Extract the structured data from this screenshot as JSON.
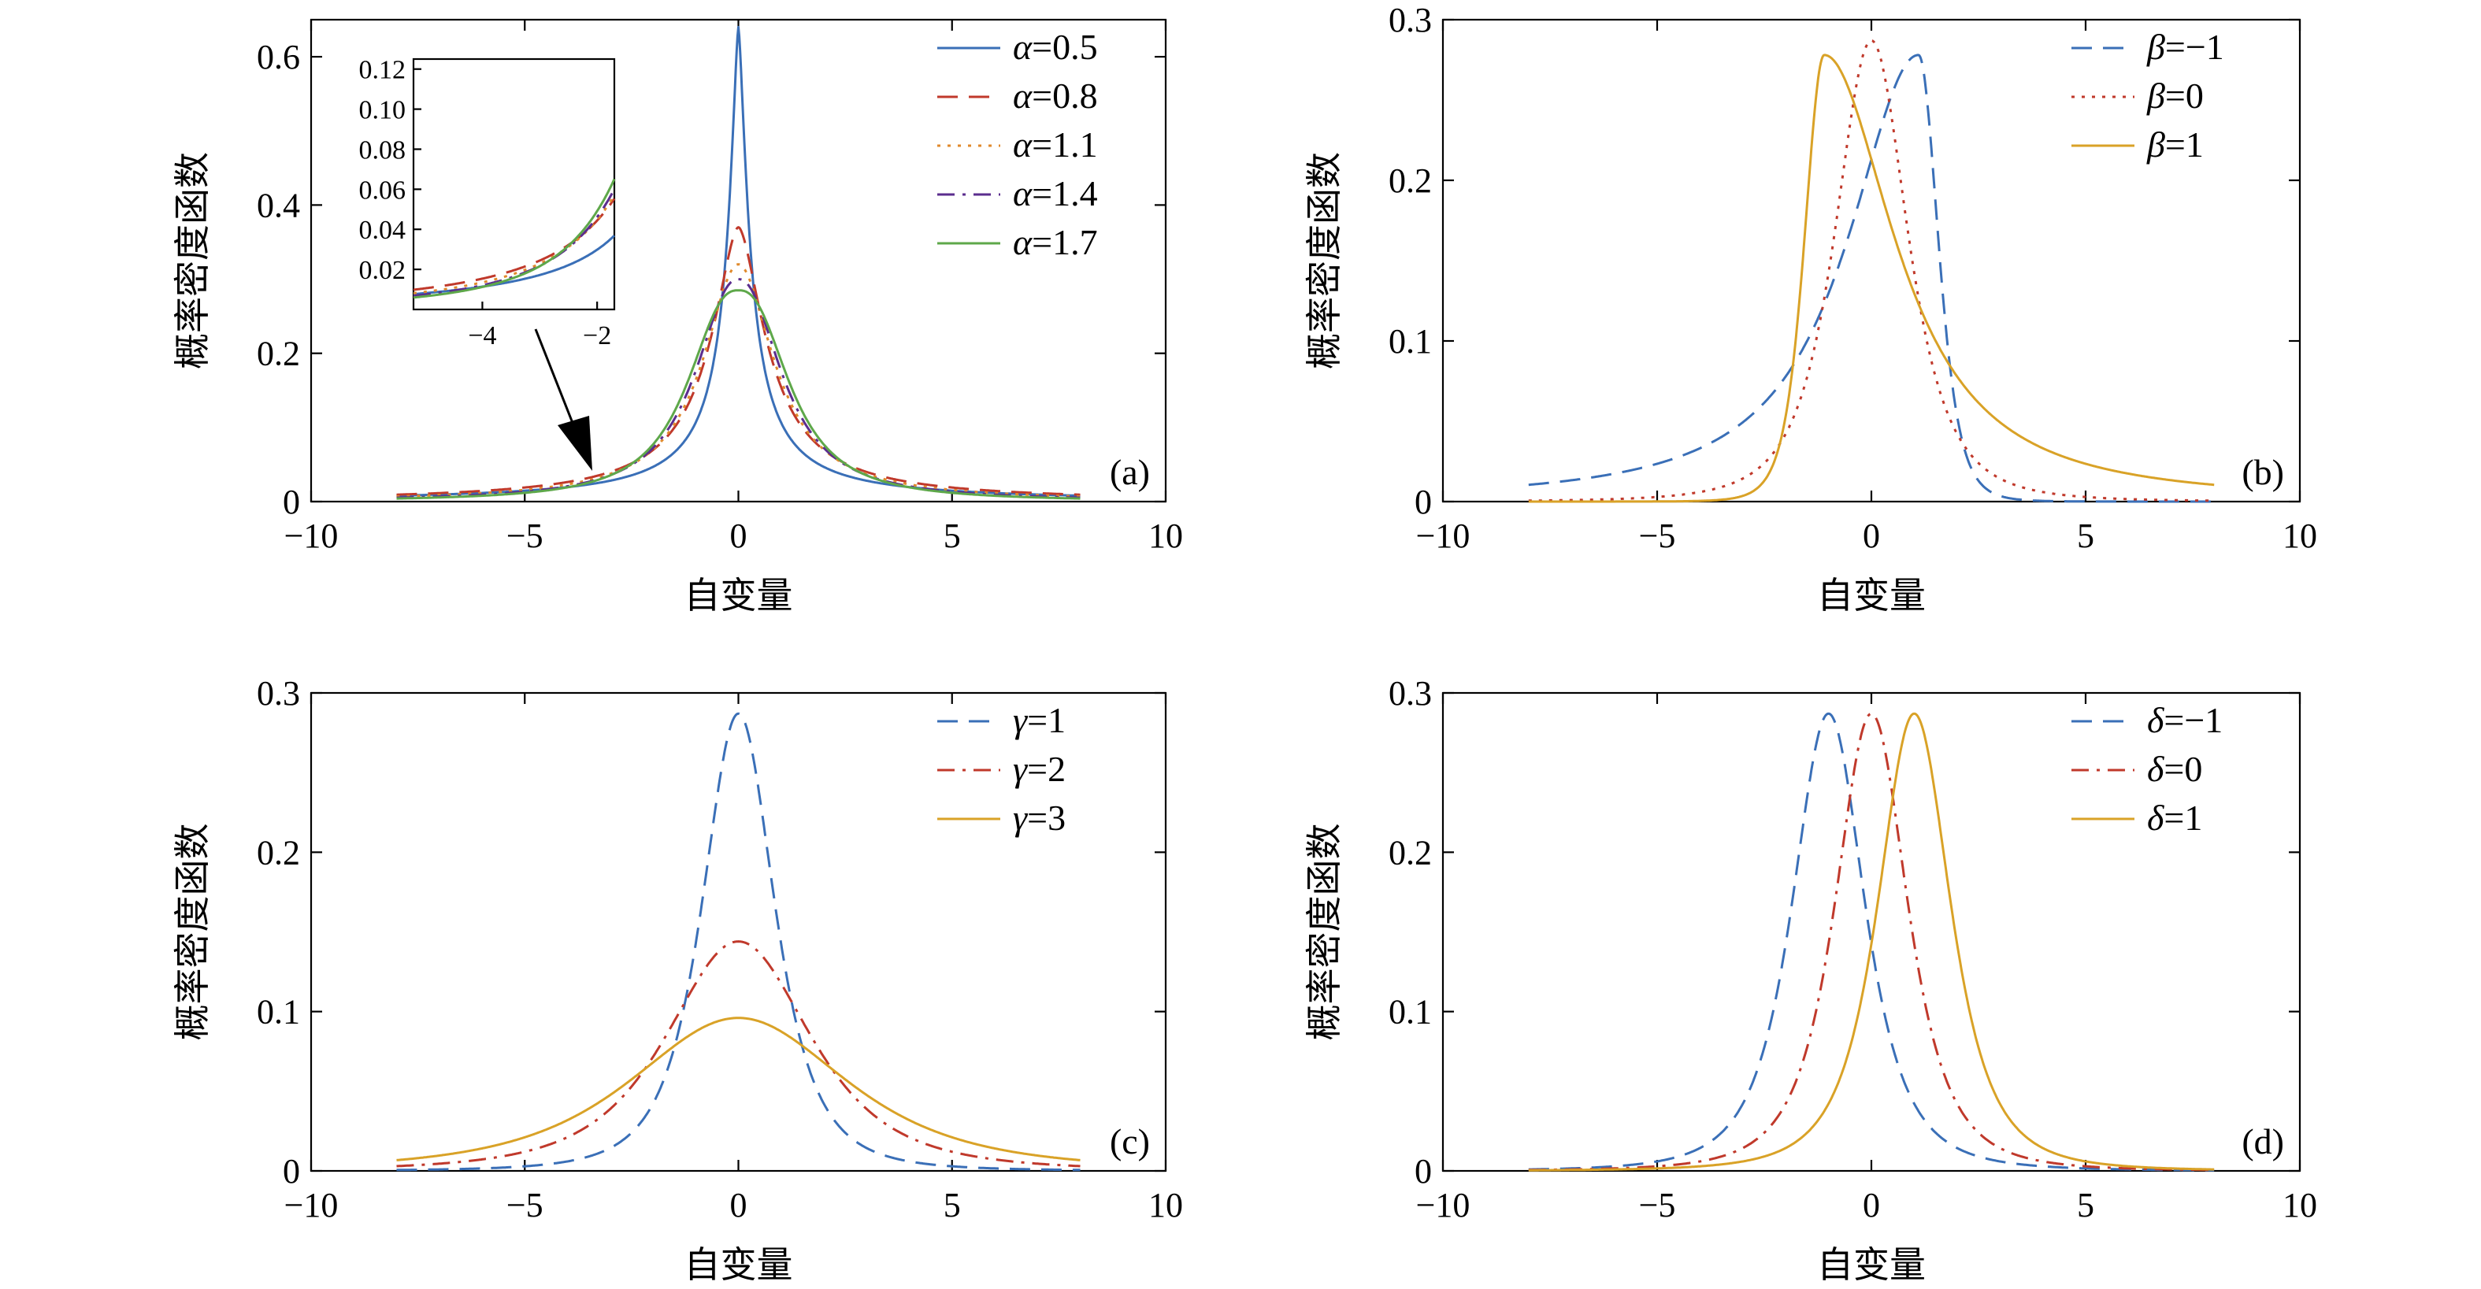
{
  "colors": {
    "blue": "#3a6fb7",
    "red": "#c0392b",
    "orange": "#e08a2c",
    "purple": "#5b2d8e",
    "green": "#5ea84a",
    "gold": "#d9a227"
  },
  "chart_data": [
    {
      "type": "line",
      "panel": "(a)",
      "xlabel": "自变量",
      "ylabel": "概率密度函数",
      "xlim": [
        -10,
        10
      ],
      "ylim": [
        0,
        0.65
      ],
      "xticks": [
        -10,
        -5,
        0,
        5,
        10
      ],
      "xtick_labels": [
        "−10",
        "−5",
        "0",
        "5",
        "10"
      ],
      "yticks": [
        0,
        0.2,
        0.4,
        0.6
      ],
      "ytick_labels": [
        "0",
        "0.2",
        "0.4",
        "0.6"
      ],
      "x_range": [
        -8,
        8
      ],
      "legend_position": "top-right",
      "series": [
        {
          "name": "α=0.5",
          "symbol": "α",
          "value": "0.5",
          "color": "blue",
          "dash": "solid",
          "peak": 0.64,
          "width": 0.28,
          "exponent": 0.5,
          "skew": 0
        },
        {
          "name": "α=0.8",
          "symbol": "α",
          "value": "0.8",
          "color": "red",
          "dash": "dash",
          "peak": 0.37,
          "width": 0.75,
          "exponent": 0.8,
          "skew": 0
        },
        {
          "name": "α=1.1",
          "symbol": "α",
          "value": "1.1",
          "color": "orange",
          "dash": "dot",
          "peak": 0.32,
          "width": 0.95,
          "exponent": 1.1,
          "skew": 0
        },
        {
          "name": "α=1.4",
          "symbol": "α",
          "value": "1.4",
          "color": "purple",
          "dash": "dashdot",
          "peak": 0.3,
          "width": 1.1,
          "exponent": 1.4,
          "skew": 0
        },
        {
          "name": "α=1.7",
          "symbol": "α",
          "value": "1.7",
          "color": "green",
          "dash": "solid",
          "peak": 0.285,
          "width": 1.25,
          "exponent": 1.7,
          "skew": 0
        }
      ],
      "inset": {
        "xlim": [
          -5.2,
          -1.7
        ],
        "ylim": [
          0,
          0.125
        ],
        "xticks": [
          -4,
          -2
        ],
        "xtick_labels": [
          "−4",
          "−2"
        ],
        "yticks": [
          0.02,
          0.04,
          0.06,
          0.08,
          0.1,
          0.12
        ],
        "ytick_labels": [
          "0.02",
          "0.04",
          "0.06",
          "0.08",
          "0.10",
          "0.12"
        ]
      }
    },
    {
      "type": "line",
      "panel": "(b)",
      "xlabel": "自变量",
      "ylabel": "概率密度函数",
      "xlim": [
        -10,
        10
      ],
      "ylim": [
        0,
        0.3
      ],
      "xticks": [
        -10,
        -5,
        0,
        5,
        10
      ],
      "xtick_labels": [
        "−10",
        "−5",
        "0",
        "5",
        "10"
      ],
      "yticks": [
        0,
        0.1,
        0.2,
        0.3
      ],
      "ytick_labels": [
        "0",
        "0.1",
        "0.2",
        "0.3"
      ],
      "x_range": [
        -8,
        8
      ],
      "legend_position": "top-right",
      "series": [
        {
          "name": "β=−1",
          "symbol": "β",
          "value": "=−1",
          "color": "blue",
          "dash": "dash",
          "peak": 0.278,
          "mode": 1.1,
          "skew": -1
        },
        {
          "name": "β=0",
          "symbol": "β",
          "value": "=0",
          "color": "red",
          "dash": "dot",
          "peak": 0.287,
          "mode": 0,
          "skew": 0
        },
        {
          "name": "β=1",
          "symbol": "β",
          "value": "=1",
          "color": "gold",
          "dash": "solid",
          "peak": 0.278,
          "mode": -1.1,
          "skew": 1
        }
      ]
    },
    {
      "type": "line",
      "panel": "(c)",
      "xlabel": "自变量",
      "ylabel": "概率密度函数",
      "xlim": [
        -10,
        10
      ],
      "ylim": [
        0,
        0.3
      ],
      "xticks": [
        -10,
        -5,
        0,
        5,
        10
      ],
      "xtick_labels": [
        "−10",
        "−5",
        "0",
        "5",
        "10"
      ],
      "yticks": [
        0,
        0.1,
        0.2,
        0.3
      ],
      "ytick_labels": [
        "0",
        "0.1",
        "0.2",
        "0.3"
      ],
      "x_range": [
        -8,
        8
      ],
      "legend_position": "top-right",
      "series": [
        {
          "name": "γ=1",
          "symbol": "γ",
          "value": "=1",
          "color": "blue",
          "dash": "dash",
          "peak": 0.287,
          "scale": 1
        },
        {
          "name": "γ=2",
          "symbol": "γ",
          "value": "=2",
          "color": "red",
          "dash": "dashdot",
          "peak": 0.144,
          "scale": 2
        },
        {
          "name": "γ=3",
          "symbol": "γ",
          "value": "=3",
          "color": "gold",
          "dash": "solid",
          "peak": 0.096,
          "scale": 3
        }
      ]
    },
    {
      "type": "line",
      "panel": "(d)",
      "xlabel": "自变量",
      "ylabel": "概率密度函数",
      "xlim": [
        -10,
        10
      ],
      "ylim": [
        0,
        0.3
      ],
      "xticks": [
        -10,
        -5,
        0,
        5,
        10
      ],
      "xtick_labels": [
        "−10",
        "−5",
        "0",
        "5",
        "10"
      ],
      "yticks": [
        0,
        0.1,
        0.2,
        0.3
      ],
      "ytick_labels": [
        "0",
        "0.1",
        "0.2",
        "0.3"
      ],
      "x_range": [
        -8,
        8
      ],
      "legend_position": "top-right",
      "series": [
        {
          "name": "δ=−1",
          "symbol": "δ",
          "value": "=−1",
          "color": "blue",
          "dash": "dash",
          "peak": 0.287,
          "loc": -1
        },
        {
          "name": "δ=0",
          "symbol": "δ",
          "value": "=0",
          "color": "red",
          "dash": "dashdot",
          "peak": 0.287,
          "loc": 0
        },
        {
          "name": "δ=1",
          "symbol": "δ",
          "value": "=1",
          "color": "gold",
          "dash": "solid",
          "peak": 0.287,
          "loc": 1
        }
      ]
    }
  ]
}
